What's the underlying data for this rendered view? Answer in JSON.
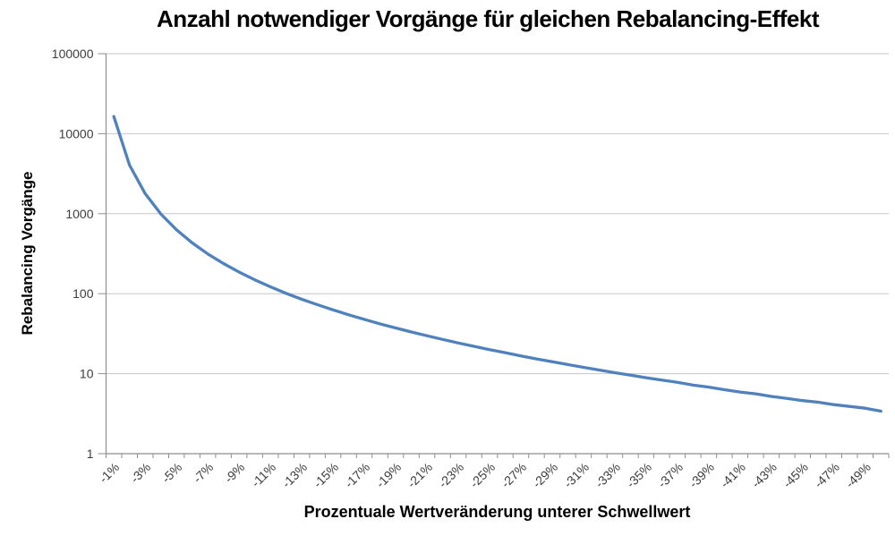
{
  "chart_data": {
    "type": "line",
    "title": "Anzahl notwendiger Vorgänge für gleichen Rebalancing-Effekt",
    "xlabel": "Prozentuale Wertveränderung unterer Schwellwert",
    "ylabel": "Rebalancing Vorgänge",
    "x_percent": [
      -1,
      -2,
      -3,
      -4,
      -5,
      -6,
      -7,
      -8,
      -9,
      -10,
      -11,
      -12,
      -13,
      -14,
      -15,
      -16,
      -17,
      -18,
      -19,
      -20,
      -21,
      -22,
      -23,
      -24,
      -25,
      -26,
      -27,
      -28,
      -29,
      -30,
      -31,
      -32,
      -33,
      -34,
      -35,
      -36,
      -37,
      -38,
      -39,
      -40,
      -41,
      -42,
      -43,
      -44,
      -45,
      -46,
      -47,
      -48,
      -49,
      -50
    ],
    "values": [
      16400,
      4050,
      1780,
      993,
      629,
      432,
      314,
      238,
      186,
      149,
      122,
      101,
      85.3,
      72.8,
      62.7,
      54.4,
      47.7,
      42,
      37.3,
      33.2,
      29.8,
      26.8,
      24.2,
      22,
      20,
      18.3,
      16.7,
      15.3,
      14.1,
      13,
      12,
      11.1,
      10.3,
      9.6,
      8.9,
      8.3,
      7.8,
      7.2,
      6.8,
      6.3,
      5.9,
      5.6,
      5.2,
      4.9,
      4.6,
      4.4,
      4.1,
      3.9,
      3.7,
      3.4
    ],
    "x_tick_labels": [
      "-1%",
      "-3%",
      "-5%",
      "-7%",
      "-9%",
      "-11%",
      "-13%",
      "-15%",
      "-17%",
      "-19%",
      "-21%",
      "-23%",
      "-25%",
      "-27%",
      "-29%",
      "-31%",
      "-33%",
      "-35%",
      "-37%",
      "-39%",
      "-41%",
      "-43%",
      "-45%",
      "-47%",
      "-49%"
    ],
    "x_label_interval": 2,
    "y_ticks": [
      1,
      10,
      100,
      1000,
      10000,
      100000
    ],
    "y_tick_labels": [
      "1",
      "10",
      "100",
      "1000",
      "10000",
      "100000"
    ],
    "y_scale": "log",
    "ylim": [
      1,
      100000
    ],
    "grid": "horizontal-only",
    "legend": "none",
    "colors": {
      "line": "#4f81bd",
      "grid": "#c6c6c6",
      "axis": "#8e8e8e",
      "tick_text": "#3d3d3d",
      "title_text": "#000000"
    }
  }
}
